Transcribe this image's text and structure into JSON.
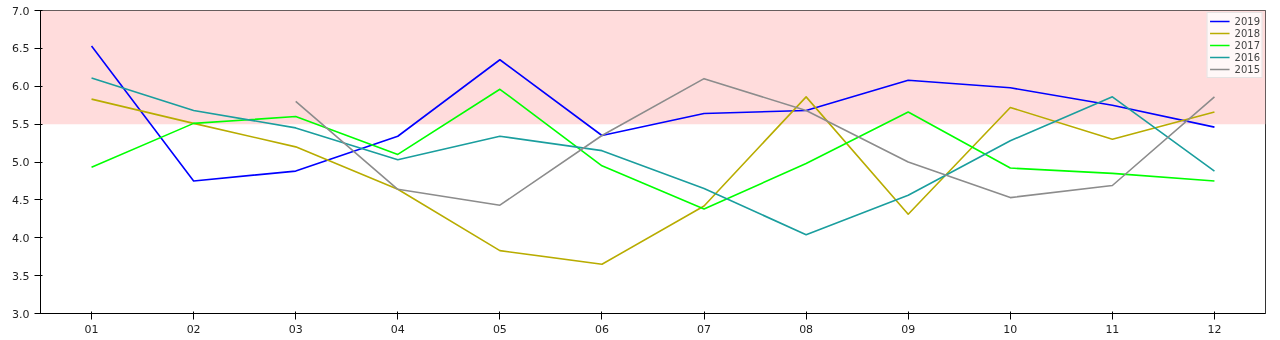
{
  "chart_data": {
    "type": "line",
    "categories": [
      "01",
      "02",
      "03",
      "04",
      "05",
      "06",
      "07",
      "08",
      "09",
      "10",
      "11",
      "12"
    ],
    "ylim": [
      3.0,
      7.0
    ],
    "yticks": [
      {
        "value": 3,
        "label": "3.0"
      },
      {
        "value": 3.5,
        "label": "3.5"
      },
      {
        "value": 4,
        "label": "4.0"
      },
      {
        "value": 4.5,
        "label": "4.5"
      },
      {
        "value": 5,
        "label": "5.0"
      },
      {
        "value": 5.5,
        "label": "5.5"
      },
      {
        "value": 6,
        "label": "6.0"
      },
      {
        "value": 6.5,
        "label": "6.5"
      },
      {
        "value": 7,
        "label": "7.0"
      }
    ],
    "grid": false,
    "legend": "top right",
    "bands": [
      {
        "axis": "y",
        "from": 5.5,
        "to": 7.0,
        "color": "#ffdcdc"
      }
    ],
    "series": [
      {
        "name": "2019",
        "color": "#0000ff",
        "values": [
          6.53,
          4.75,
          4.88,
          5.34,
          6.35,
          5.35,
          5.64,
          5.68,
          6.08,
          5.98,
          5.75,
          5.46
        ]
      },
      {
        "name": "2018",
        "color": "#b8ac00",
        "values": [
          5.83,
          5.51,
          5.2,
          4.64,
          3.83,
          3.65,
          4.42,
          5.86,
          4.31,
          5.72,
          5.3,
          5.66
        ]
      },
      {
        "name": "2017",
        "color": "#00ff00",
        "values": [
          4.93,
          5.51,
          5.6,
          5.1,
          5.96,
          4.95,
          4.38,
          4.98,
          5.66,
          4.92,
          4.85,
          4.75
        ]
      },
      {
        "name": "2016",
        "color": "#1a9e9e",
        "values": [
          6.11,
          5.68,
          5.45,
          5.03,
          5.34,
          5.15,
          4.65,
          4.04,
          4.56,
          5.28,
          5.86,
          4.88
        ]
      },
      {
        "name": "2015",
        "color": "#8c8c8c",
        "values": [
          null,
          null,
          5.8,
          4.64,
          4.43,
          5.35,
          6.1,
          5.68,
          5.0,
          4.53,
          4.69,
          5.86
        ]
      }
    ]
  }
}
